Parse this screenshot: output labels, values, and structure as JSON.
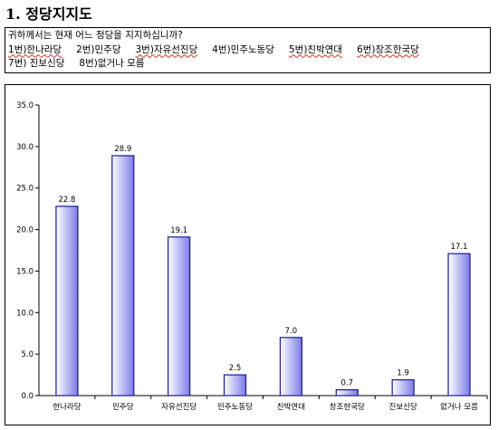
{
  "section": {
    "title": "1. 정당지지도"
  },
  "question": {
    "text": "귀하께서는 현재 어느 정당을 지지하십니까?",
    "options_line1": [
      "1번)한나라당",
      "2번)민주당",
      "3번)자유선진당",
      "4번)민주노동당",
      "5번)친박연대",
      "6번)창조한국당"
    ],
    "options_line2": [
      "7번) 진보신당",
      "8번)없거나 모름"
    ]
  },
  "chart_data": {
    "type": "bar",
    "categories": [
      "한나라당",
      "민주당",
      "자유선진당",
      "민주노동당",
      "친박연대",
      "창조한국당",
      "진보신당",
      "없거나 모름"
    ],
    "values": [
      22.8,
      28.9,
      19.1,
      2.5,
      7.0,
      0.7,
      1.9,
      17.1
    ],
    "value_labels": [
      "22.8",
      "28.9",
      "19.1",
      "2.5",
      "7.0",
      "0.7",
      "1.9",
      "17.1"
    ],
    "ylim": [
      0,
      35
    ],
    "yticks": [
      "0.0",
      "5.0",
      "10.0",
      "15.0",
      "20.0",
      "25.0",
      "30.0",
      "35.0"
    ],
    "title": "",
    "xlabel": "",
    "ylabel": "",
    "grid": false,
    "colors": {
      "bar_light": "#ffffff",
      "bar_dark": "#7b7be6",
      "bar_stroke": "#1a1a8c",
      "axis": "#000000"
    }
  }
}
